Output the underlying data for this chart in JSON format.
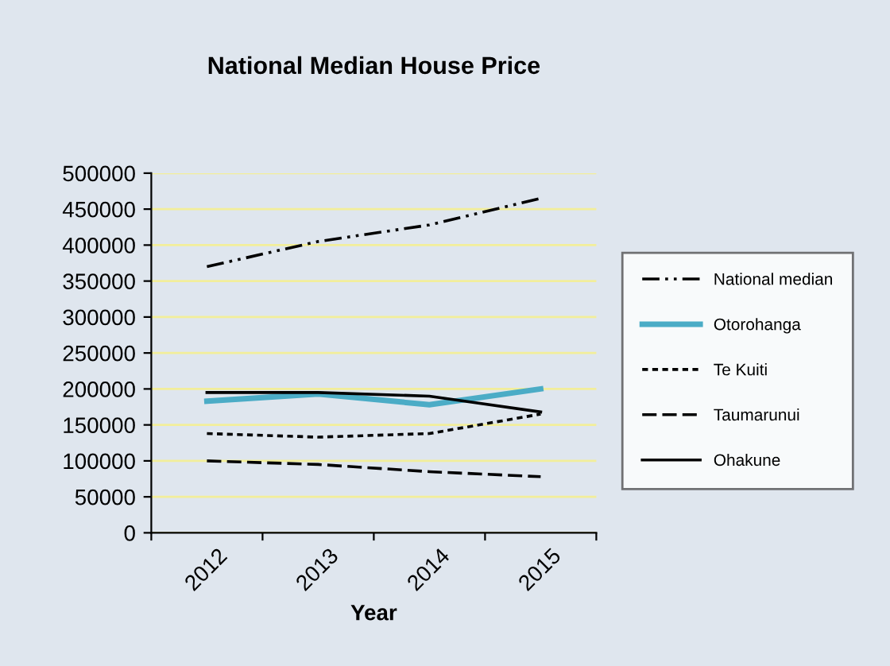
{
  "chart_data": {
    "type": "line",
    "title": "National Median House Price",
    "xlabel": "Year",
    "categories": [
      "2012",
      "2013",
      "2014",
      "2015"
    ],
    "series": [
      {
        "name": "National median",
        "color": "#000000",
        "line_style": "dashdotdot",
        "values": [
          370000,
          405000,
          428000,
          465000
        ]
      },
      {
        "name": "Otorohanga",
        "color": "#4bacc6",
        "line_style": "solid",
        "values": [
          183000,
          193000,
          178000,
          200000
        ]
      },
      {
        "name": "Te Kuiti",
        "color": "#000000",
        "line_style": "dotted",
        "values": [
          138000,
          133000,
          138000,
          165000
        ]
      },
      {
        "name": "Taumarunui",
        "color": "#000000",
        "line_style": "dashed",
        "values": [
          100000,
          95000,
          85000,
          78000
        ]
      },
      {
        "name": "Ohakune",
        "color": "#000000",
        "line_style": "solid",
        "values": [
          195000,
          195000,
          190000,
          168000
        ]
      }
    ],
    "ylim": [
      0,
      500000
    ],
    "yticks": [
      0,
      50000,
      100000,
      150000,
      200000,
      250000,
      300000,
      350000,
      400000,
      450000,
      500000
    ],
    "grid": "y",
    "legend": "right",
    "marker": "none"
  }
}
